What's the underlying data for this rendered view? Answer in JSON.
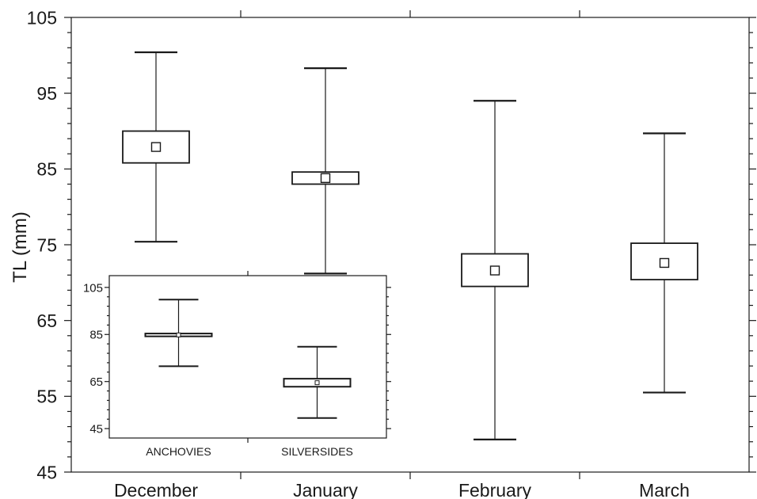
{
  "chart_data": [
    {
      "type": "box",
      "ylabel": "TL (mm)",
      "ylim": [
        45,
        105
      ],
      "yticks": [
        45,
        55,
        65,
        75,
        85,
        95,
        105
      ],
      "ytick_labels": [
        "45",
        "55",
        "65",
        "75",
        "85",
        "95",
        "105"
      ],
      "categories": [
        "December",
        "January",
        "February",
        "March"
      ],
      "boxes": [
        {
          "category": "December",
          "min": 75.4,
          "q1": 85.8,
          "mean": 87.9,
          "q3": 90.0,
          "max": 100.4
        },
        {
          "category": "January",
          "min": 71.2,
          "q1": 83.0,
          "mean": 83.8,
          "q3": 84.6,
          "max": 98.3
        },
        {
          "category": "February",
          "min": 49.3,
          "q1": 69.5,
          "mean": 71.6,
          "q3": 73.8,
          "max": 94.0
        },
        {
          "category": "March",
          "min": 55.5,
          "q1": 70.4,
          "mean": 72.6,
          "q3": 75.2,
          "max": 89.7
        }
      ]
    },
    {
      "type": "box",
      "inset": true,
      "ylim": [
        41,
        110
      ],
      "yticks": [
        45,
        65,
        85,
        105
      ],
      "ytick_labels": [
        "45",
        "65",
        "85",
        "105"
      ],
      "categories": [
        "ANCHOVIES",
        "SILVERSIDES"
      ],
      "boxes": [
        {
          "category": "ANCHOVIES",
          "min": 71.5,
          "q1": 84.2,
          "mean": 84.8,
          "q3": 85.4,
          "max": 99.8
        },
        {
          "category": "SILVERSIDES",
          "min": 49.5,
          "q1": 62.8,
          "mean": 64.5,
          "q3": 66.2,
          "max": 79.8
        }
      ]
    }
  ]
}
